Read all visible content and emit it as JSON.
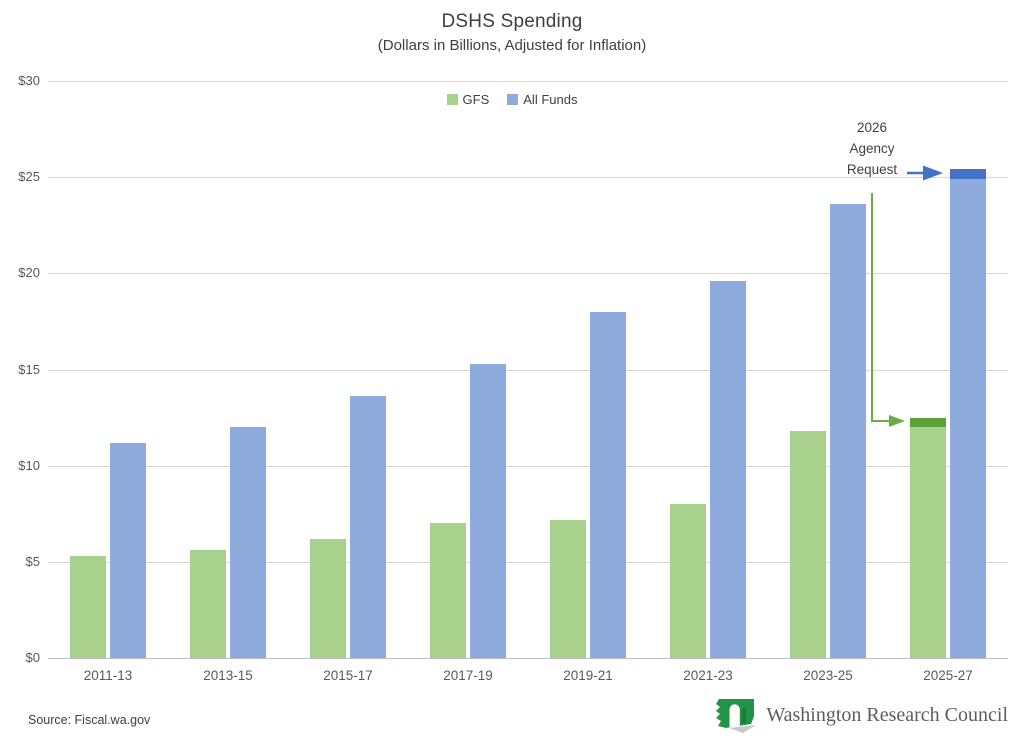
{
  "title": "DSHS Spending",
  "subtitle": "(Dollars in Billions, Adjusted for Inflation)",
  "legend": {
    "items": [
      {
        "label": "GFS",
        "color": "#A9D18E"
      },
      {
        "label": "All Funds",
        "color": "#8FAADC"
      }
    ]
  },
  "annotation": {
    "label": "2026 Agency Request",
    "lines": [
      "2026",
      "Agency",
      "Request"
    ]
  },
  "source": "Source: Fiscal.wa.gov",
  "footer_brand": "Washington Research Council",
  "colors": {
    "gfs": "#A9D18E",
    "all_funds": "#8FAADC",
    "gfs_request": "#5BA23C",
    "all_funds_request": "#4472C4",
    "arrow_green": "#6BAD45",
    "arrow_blue": "#4472C4",
    "gridline": "#D9D9D9",
    "axis_line": "#BFBFBF",
    "tick_text": "#595959",
    "text": "#404040",
    "logo_green": "#239447",
    "logo_dark_green": "#1C7A3A",
    "logo_shadow": "#C9C9C9"
  },
  "chart_data": {
    "type": "bar",
    "title": "DSHS Spending",
    "subtitle": "(Dollars in Billions, Adjusted for Inflation)",
    "categories": [
      "2011-13",
      "2013-15",
      "2015-17",
      "2017-19",
      "2019-21",
      "2021-23",
      "2023-25",
      "2025-27"
    ],
    "series": [
      {
        "name": "GFS",
        "values": [
          5.3,
          5.6,
          6.2,
          7.0,
          7.2,
          8.0,
          11.8,
          12.5
        ]
      },
      {
        "name": "All Funds",
        "values": [
          11.2,
          12.0,
          13.6,
          15.3,
          18.0,
          19.6,
          23.6,
          25.4
        ]
      }
    ],
    "highlight": {
      "category": "2025-27",
      "label": "2026 Agency Request",
      "gfs_base": 12.0,
      "gfs_total": 12.5,
      "all_funds_base": 24.9,
      "all_funds_total": 25.4
    },
    "xlabel": "",
    "ylabel": "",
    "ylim": [
      0,
      30
    ],
    "y_axis": {
      "tick_values": [
        0,
        5,
        10,
        15,
        20,
        25,
        30
      ],
      "tick_labels": [
        "$0",
        "$5",
        "$10",
        "$15",
        "$20",
        "$25",
        "$30"
      ]
    },
    "grid": true,
    "legend_position": "top-center"
  }
}
